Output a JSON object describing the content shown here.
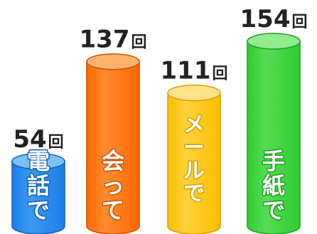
{
  "chart_data": {
    "type": "bar",
    "style": "3d-cylinder",
    "unit": "回",
    "categories": [
      "電話で",
      "会って",
      "メールで",
      "手紙で"
    ],
    "values": [
      54,
      137,
      111,
      154
    ],
    "ylim": [
      0,
      154
    ],
    "grid": false,
    "legend": "none",
    "bars": [
      {
        "category": "電話で",
        "value": 54,
        "label_chars": [
          "電",
          "話",
          "で"
        ],
        "colors": {
          "body": "#1a7fe8",
          "body_light": "#3d99f2",
          "top": "#7cc0fb",
          "outline": "#0e5fb8"
        }
      },
      {
        "category": "会って",
        "value": 137,
        "label_chars": [
          "会",
          "っ",
          "て"
        ],
        "colors": {
          "body": "#ff6a00",
          "body_light": "#ff8a2e",
          "top": "#ffb26e",
          "outline": "#d04f00"
        }
      },
      {
        "category": "メールで",
        "value": 111,
        "label_chars": [
          "メ",
          "ー",
          "ル",
          "で"
        ],
        "colors": {
          "body": "#ffbf00",
          "body_light": "#ffd23a",
          "top": "#ffe28a",
          "outline": "#d99c00"
        }
      },
      {
        "category": "手紙で",
        "value": 154,
        "label_chars": [
          "手",
          "紙",
          "で"
        ],
        "colors": {
          "body": "#2ecc2e",
          "body_light": "#55dd55",
          "top": "#90ec8f",
          "outline": "#1e9e1e"
        }
      }
    ]
  }
}
